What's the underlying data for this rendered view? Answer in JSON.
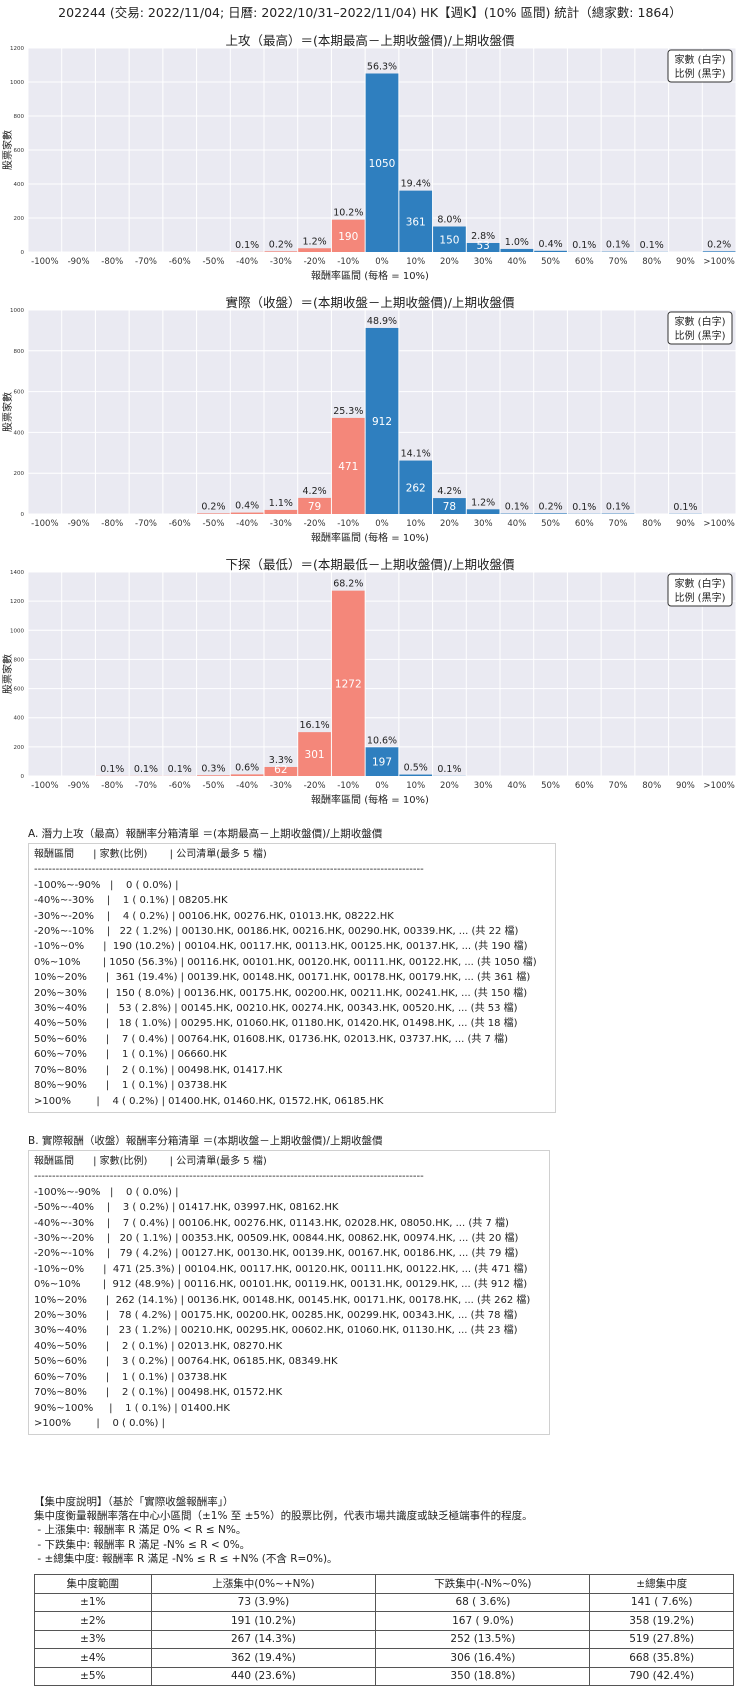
{
  "page_title": "202244 (交易: 2022/11/04; 日曆: 2022/10/31–2022/11/04) HK【週K】(10% 區間) 統計（總家數: 1864）",
  "chart_data": [
    {
      "type": "bar",
      "title": "上攻（最高）＝(本期最高－上期收盤價)/上期收盤價",
      "xlabel": "報酬率區間 (每格 = 10%)",
      "ylabel": "股票家數",
      "legend_lines": [
        "家數 (白字)",
        "比例 (黑字)"
      ],
      "legend_position": "top-right",
      "ylim": [
        0,
        1200
      ],
      "yticks": [
        0,
        200,
        400,
        600,
        800,
        1000,
        1200
      ],
      "categories": [
        "-100%",
        "-90%",
        "-80%",
        "-70%",
        "-60%",
        "-50%",
        "-40%",
        "-30%",
        "-20%",
        "-10%",
        "0%",
        "10%",
        "20%",
        "30%",
        "40%",
        "50%",
        "60%",
        "70%",
        "80%",
        "90%",
        ">100%"
      ],
      "values": [
        0,
        0,
        0,
        0,
        0,
        0,
        1,
        4,
        22,
        190,
        1050,
        361,
        150,
        53,
        18,
        7,
        1,
        2,
        1,
        0,
        4
      ],
      "pct_labels": [
        "",
        "",
        "",
        "",
        "",
        "",
        "0.1%",
        "0.2%",
        "1.2%",
        "10.2%",
        "56.3%",
        "19.4%",
        "8.0%",
        "2.8%",
        "1.0%",
        "0.4%",
        "0.1%",
        "0.1%",
        "0.1%",
        "",
        "0.2%"
      ],
      "count_labels": [
        "",
        "",
        "",
        "",
        "",
        "",
        "",
        "",
        "",
        "190",
        "1050",
        "361",
        "150",
        "53",
        "",
        "",
        "",
        "",
        "",
        "",
        ""
      ],
      "colors": {
        "negative": "#f4877a",
        "positive": "#2f7fbf"
      },
      "grid": true
    },
    {
      "type": "bar",
      "title": "實際（收盤）＝(本期收盤－上期收盤價)/上期收盤價",
      "xlabel": "報酬率區間 (每格 = 10%)",
      "ylabel": "股票家數",
      "legend_lines": [
        "家數 (白字)",
        "比例 (黑字)"
      ],
      "legend_position": "top-right",
      "ylim": [
        0,
        1000
      ],
      "yticks": [
        0,
        200,
        400,
        600,
        800,
        1000
      ],
      "categories": [
        "-100%",
        "-90%",
        "-80%",
        "-70%",
        "-60%",
        "-50%",
        "-40%",
        "-30%",
        "-20%",
        "-10%",
        "0%",
        "10%",
        "20%",
        "30%",
        "40%",
        "50%",
        "60%",
        "70%",
        "80%",
        "90%",
        ">100%"
      ],
      "values": [
        0,
        0,
        0,
        0,
        0,
        3,
        7,
        20,
        79,
        471,
        912,
        262,
        78,
        23,
        2,
        3,
        1,
        2,
        0,
        1,
        0
      ],
      "pct_labels": [
        "",
        "",
        "",
        "",
        "",
        "0.2%",
        "0.4%",
        "1.1%",
        "4.2%",
        "25.3%",
        "48.9%",
        "14.1%",
        "4.2%",
        "1.2%",
        "0.1%",
        "0.2%",
        "0.1%",
        "0.1%",
        "",
        "0.1%",
        ""
      ],
      "count_labels": [
        "",
        "",
        "",
        "",
        "",
        "",
        "",
        "",
        "79",
        "471",
        "912",
        "262",
        "78",
        "",
        "",
        "",
        "",
        "",
        "",
        "",
        ""
      ],
      "colors": {
        "negative": "#f4877a",
        "positive": "#2f7fbf"
      },
      "grid": true
    },
    {
      "type": "bar",
      "title": "下探（最低）＝(本期最低－上期收盤價)/上期收盤價",
      "xlabel": "報酬率區間 (每格 = 10%)",
      "ylabel": "股票家數",
      "legend_lines": [
        "家數 (白字)",
        "比例 (黑字)"
      ],
      "legend_position": "top-right",
      "ylim": [
        0,
        1400
      ],
      "yticks": [
        0,
        200,
        400,
        600,
        800,
        1000,
        1200,
        1400
      ],
      "categories": [
        "-100%",
        "-90%",
        "-80%",
        "-70%",
        "-60%",
        "-50%",
        "-40%",
        "-30%",
        "-20%",
        "-10%",
        "0%",
        "10%",
        "20%",
        "30%",
        "40%",
        "50%",
        "60%",
        "70%",
        "80%",
        "90%",
        ">100%"
      ],
      "values": [
        0,
        0,
        1,
        1,
        1,
        5,
        11,
        62,
        301,
        1272,
        197,
        10,
        1,
        0,
        0,
        0,
        0,
        0,
        0,
        0,
        0
      ],
      "pct_labels": [
        "",
        "",
        "0.1%",
        "0.1%",
        "0.1%",
        "0.3%",
        "0.6%",
        "3.3%",
        "16.1%",
        "68.2%",
        "10.6%",
        "0.5%",
        "0.1%",
        "",
        "",
        "",
        "",
        "",
        "",
        "",
        ""
      ],
      "count_labels": [
        "",
        "",
        "",
        "",
        "",
        "",
        "",
        "62",
        "301",
        "1272",
        "197",
        "",
        "",
        "",
        "",
        "",
        "",
        "",
        "",
        "",
        ""
      ],
      "colors": {
        "negative": "#f4877a",
        "positive": "#2f7fbf"
      },
      "grid": true
    }
  ],
  "list_a": {
    "heading": "A. 潛力上攻（最高）報酬率分箱清單 ＝(本期最高－上期收盤價)/上期收盤價",
    "lines": [
      "報酬區間      | 家數(比例)       | 公司清單(最多 5 檔)",
      "------------------------------------------------------------------------------------------------------------",
      "-100%~-90%   |    0 ( 0.0%) |",
      "-40%~-30%    |    1 ( 0.1%) | 08205.HK",
      "-30%~-20%    |    4 ( 0.2%) | 00106.HK, 00276.HK, 01013.HK, 08222.HK",
      "-20%~-10%    |   22 ( 1.2%) | 00130.HK, 00186.HK, 00216.HK, 00290.HK, 00339.HK, ... (共 22 檔)",
      "-10%~0%      |  190 (10.2%) | 00104.HK, 00117.HK, 00113.HK, 00125.HK, 00137.HK, ... (共 190 檔)",
      "0%~10%       | 1050 (56.3%) | 00116.HK, 00101.HK, 00120.HK, 00111.HK, 00122.HK, ... (共 1050 檔)",
      "10%~20%      |  361 (19.4%) | 00139.HK, 00148.HK, 00171.HK, 00178.HK, 00179.HK, ... (共 361 檔)",
      "20%~30%      |  150 ( 8.0%) | 00136.HK, 00175.HK, 00200.HK, 00211.HK, 00241.HK, ... (共 150 檔)",
      "30%~40%      |   53 ( 2.8%) | 00145.HK, 00210.HK, 00274.HK, 00343.HK, 00520.HK, ... (共 53 檔)",
      "40%~50%      |   18 ( 1.0%) | 00295.HK, 01060.HK, 01180.HK, 01420.HK, 01498.HK, ... (共 18 檔)",
      "50%~60%      |    7 ( 0.4%) | 00764.HK, 01608.HK, 01736.HK, 02013.HK, 03737.HK, ... (共 7 檔)",
      "60%~70%      |    1 ( 0.1%) | 06660.HK",
      "70%~80%      |    2 ( 0.1%) | 00498.HK, 01417.HK",
      "80%~90%      |    1 ( 0.1%) | 03738.HK",
      ">100%        |    4 ( 0.2%) | 01400.HK, 01460.HK, 01572.HK, 06185.HK"
    ]
  },
  "list_b": {
    "heading": "B. 實際報酬（收盤）報酬率分箱清單 ＝(本期收盤－上期收盤價)/上期收盤價",
    "lines": [
      "報酬區間      | 家數(比例)       | 公司清單(最多 5 檔)",
      "------------------------------------------------------------------------------------------------------------",
      "-100%~-90%   |    0 ( 0.0%) |",
      "-50%~-40%    |    3 ( 0.2%) | 01417.HK, 03997.HK, 08162.HK",
      "-40%~-30%    |    7 ( 0.4%) | 00106.HK, 00276.HK, 01143.HK, 02028.HK, 08050.HK, ... (共 7 檔)",
      "-30%~-20%    |   20 ( 1.1%) | 00353.HK, 00509.HK, 00844.HK, 00862.HK, 00974.HK, ... (共 20 檔)",
      "-20%~-10%    |   79 ( 4.2%) | 00127.HK, 00130.HK, 00139.HK, 00167.HK, 00186.HK, ... (共 79 檔)",
      "-10%~0%      |  471 (25.3%) | 00104.HK, 00117.HK, 00120.HK, 00111.HK, 00122.HK, ... (共 471 檔)",
      "0%~10%       |  912 (48.9%) | 00116.HK, 00101.HK, 00119.HK, 00131.HK, 00129.HK, ... (共 912 檔)",
      "10%~20%      |  262 (14.1%) | 00136.HK, 00148.HK, 00145.HK, 00171.HK, 00178.HK, ... (共 262 檔)",
      "20%~30%      |   78 ( 4.2%) | 00175.HK, 00200.HK, 00285.HK, 00299.HK, 00343.HK, ... (共 78 檔)",
      "30%~40%      |   23 ( 1.2%) | 00210.HK, 00295.HK, 00602.HK, 01060.HK, 01130.HK, ... (共 23 檔)",
      "40%~50%      |    2 ( 0.1%) | 02013.HK, 08270.HK",
      "50%~60%      |    3 ( 0.2%) | 00764.HK, 06185.HK, 08349.HK",
      "60%~70%      |    1 ( 0.1%) | 03738.HK",
      "70%~80%      |    2 ( 0.1%) | 00498.HK, 01572.HK",
      "90%~100%     |    1 ( 0.1%) | 01400.HK",
      ">100%        |    0 ( 0.0%) |"
    ]
  },
  "concentration": {
    "title": "【集中度說明】（基於「實際收盤報酬率」）",
    "lines": [
      "集中度衡量報酬率落在中心小區間（±1% 至 ±5%）的股票比例，代表市場共識度或缺乏極端事件的程度。",
      " - 上漲集中: 報酬率 R 滿足 0% < R ≤ N%。",
      " - 下跌集中: 報酬率 R 滿足 -N% ≤ R < 0%。",
      " - ±總集中度: 報酬率 R 滿足 -N% ≤ R ≤ +N% (不含 R=0%)。"
    ],
    "table": {
      "headers": [
        "集中度範圍",
        "上漲集中(0%~+N%)",
        "下跌集中(-N%~0%)",
        "±總集中度"
      ],
      "rows": [
        [
          "±1%",
          "73 (3.9%)",
          "68 ( 3.6%)",
          "141 ( 7.6%)"
        ],
        [
          "±2%",
          "191 (10.2%)",
          "167 ( 9.0%)",
          "358 (19.2%)"
        ],
        [
          "±3%",
          "267 (14.3%)",
          "252 (13.5%)",
          "519 (27.8%)"
        ],
        [
          "±4%",
          "362 (19.4%)",
          "306 (16.4%)",
          "668 (35.8%)"
        ],
        [
          "±5%",
          "440 (23.6%)",
          "350 (18.8%)",
          "790 (42.4%)"
        ]
      ]
    }
  }
}
